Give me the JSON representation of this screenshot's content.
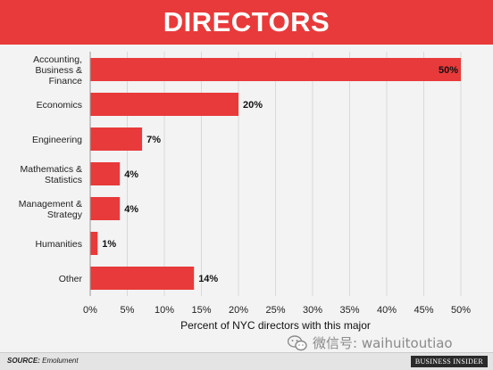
{
  "header": {
    "title": "DIRECTORS"
  },
  "colors": {
    "header_bg": "#e83a3a",
    "bar": "#e83a3a",
    "plot_bg": "#f3f3f3"
  },
  "chart_data": {
    "type": "bar",
    "orientation": "horizontal",
    "categories": [
      [
        "Accounting,",
        "Business &",
        "Finance"
      ],
      [
        "Economics"
      ],
      [
        "Engineering"
      ],
      [
        "Mathematics &",
        "Statistics"
      ],
      [
        "Management &",
        "Strategy"
      ],
      [
        "Humanities"
      ],
      [
        "Other"
      ]
    ],
    "values": [
      50,
      20,
      7,
      4,
      4,
      1,
      14
    ],
    "value_labels": [
      "50%",
      "20%",
      "7%",
      "4%",
      "4%",
      "1%",
      "14%"
    ],
    "xticks": [
      0,
      5,
      10,
      15,
      20,
      25,
      30,
      35,
      40,
      45,
      50
    ],
    "xtick_labels": [
      "0%",
      "5%",
      "10%",
      "15%",
      "20%",
      "25%",
      "30%",
      "35%",
      "40%",
      "45%",
      "50%"
    ],
    "xlim": [
      0,
      50
    ],
    "xlabel": "Percent of NYC directors with this major",
    "ylabel": "",
    "grid": "vertical"
  },
  "footer": {
    "source_label": "SOURCE:",
    "source_value": "Emolument",
    "publisher": "BUSINESS INSIDER"
  },
  "watermark": {
    "text": "微信号: waihuitoutiao",
    "icon": "wechat-icon"
  }
}
